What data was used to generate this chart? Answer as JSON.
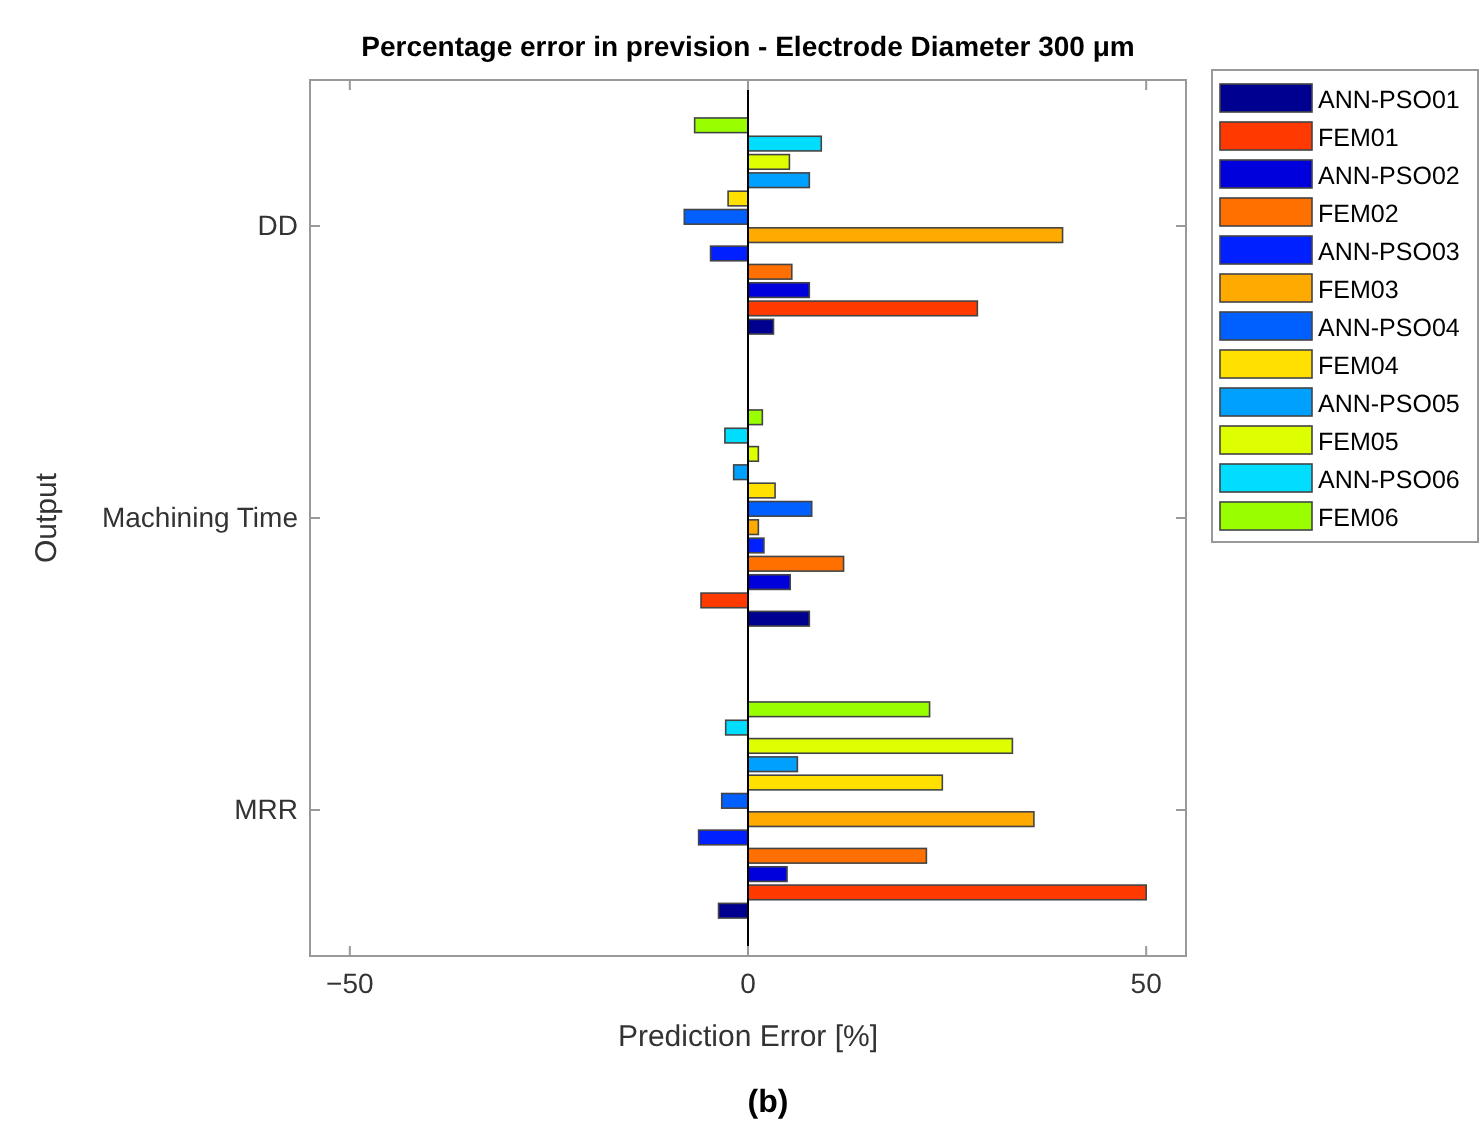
{
  "chart_data": {
    "type": "bar",
    "orientation": "horizontal",
    "title": "Percentage error in prevision - Electrode Diameter 300 μm",
    "xlabel": "Prediction Error [%]",
    "ylabel": "Output",
    "categories": [
      "DD",
      "Machining Time",
      "MRR"
    ],
    "series": [
      {
        "name": "ANN-PSO01",
        "color": "#000090",
        "values": [
          3.2,
          7.7,
          -3.7
        ]
      },
      {
        "name": "FEM01",
        "color": "#ff3a00",
        "values": [
          28.8,
          -5.9,
          50
        ]
      },
      {
        "name": "ANN-PSO02",
        "color": "#0000dd",
        "values": [
          7.7,
          5.3,
          4.9
        ]
      },
      {
        "name": "FEM02",
        "color": "#ff7000",
        "values": [
          5.5,
          12.0,
          22.4
        ]
      },
      {
        "name": "ANN-PSO03",
        "color": "#0020ff",
        "values": [
          -4.7,
          2.0,
          -6.2
        ]
      },
      {
        "name": "FEM03",
        "color": "#ffaa00",
        "values": [
          39.5,
          1.3,
          35.9
        ]
      },
      {
        "name": "ANN-PSO04",
        "color": "#0060ff",
        "values": [
          -8.0,
          8.0,
          -3.3
        ]
      },
      {
        "name": "FEM04",
        "color": "#ffe000",
        "values": [
          -2.5,
          3.4,
          24.4
        ]
      },
      {
        "name": "ANN-PSO05",
        "color": "#00a0ff",
        "values": [
          7.7,
          -1.8,
          6.2
        ]
      },
      {
        "name": "FEM05",
        "color": "#ddff00",
        "values": [
          5.2,
          1.3,
          33.2
        ]
      },
      {
        "name": "ANN-PSO06",
        "color": "#00ddff",
        "values": [
          9.2,
          -2.9,
          -2.8
        ]
      },
      {
        "name": "FEM06",
        "color": "#99ff00",
        "values": [
          -6.7,
          1.8,
          22.8
        ]
      }
    ],
    "xlim": [
      -55,
      55
    ],
    "xticks": [
      -50,
      0,
      50
    ],
    "ref_lines": [
      {
        "axis": "x",
        "value": 0,
        "color": "#000000"
      }
    ],
    "legend": "top right",
    "annotations": [
      "(b)"
    ]
  }
}
